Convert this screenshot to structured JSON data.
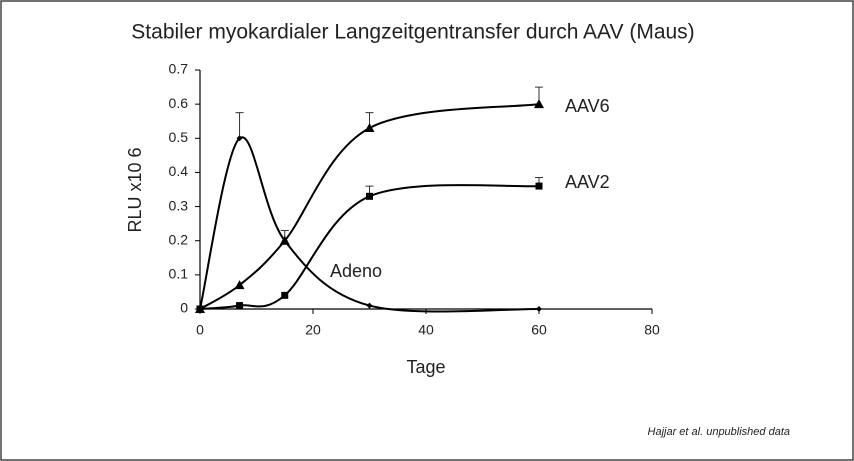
{
  "chart_data": {
    "type": "line",
    "title": "Stabiler myokardialer Langzeitgentransfer durch AAV (Maus)",
    "xlabel": "Tage",
    "ylabel": "RLU x10 6",
    "annotation": "Hajjar et al. unpublished data",
    "x": [
      0,
      7,
      15,
      30,
      60
    ],
    "series": [
      {
        "name": "Adeno",
        "color": "#000000",
        "marker": "diamond",
        "values": [
          0,
          0.5,
          0.2,
          0.01,
          0
        ],
        "errors": [
          null,
          0.075,
          0.03,
          null,
          null
        ]
      },
      {
        "name": "AAV6",
        "color": "#000000",
        "marker": "triangle",
        "values": [
          0,
          0.07,
          0.2,
          0.53,
          0.6
        ],
        "errors": [
          null,
          null,
          null,
          0.045,
          0.05
        ]
      },
      {
        "name": "AAV2",
        "color": "#000000",
        "marker": "square",
        "values": [
          0,
          0.01,
          0.04,
          0.33,
          0.36
        ],
        "errors": [
          null,
          null,
          null,
          0.03,
          0.025
        ]
      }
    ],
    "xlim": [
      0,
      80
    ],
    "xticks": [
      0,
      20,
      40,
      60,
      80
    ],
    "ylim": [
      0,
      0.7
    ],
    "yticks": [
      0,
      0.1,
      0.2,
      0.3,
      0.4,
      0.5,
      0.6,
      0.7
    ],
    "grid": false
  }
}
